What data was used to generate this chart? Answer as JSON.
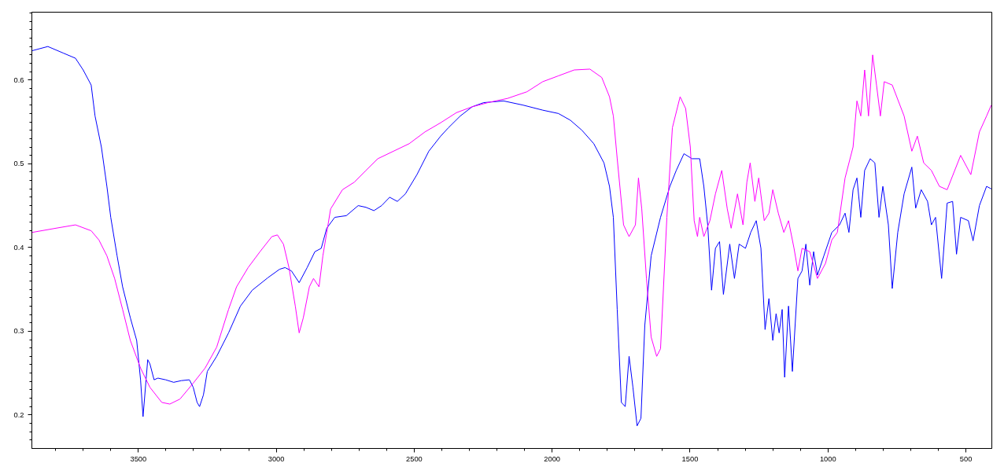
{
  "chart_data": {
    "type": "line",
    "line_style": "solid",
    "marker": "none",
    "grid": false,
    "xlim": [
      3886,
      406
    ],
    "ylim": [
      0.16,
      0.681
    ],
    "xticks": [
      {
        "value": 3800,
        "label": null
      },
      {
        "value": 3700,
        "label": null
      },
      {
        "value": 3600,
        "label": null
      },
      3500,
      {
        "value": 3400,
        "label": null
      },
      {
        "value": 3300,
        "label": null
      },
      {
        "value": 3200,
        "label": null
      },
      {
        "value": 3100,
        "label": null
      },
      3000,
      {
        "value": 2900,
        "label": null
      },
      {
        "value": 2800,
        "label": null
      },
      {
        "value": 2700,
        "label": null
      },
      {
        "value": 2600,
        "label": null
      },
      2500,
      {
        "value": 2400,
        "label": null
      },
      {
        "value": 2300,
        "label": null
      },
      {
        "value": 2200,
        "label": null
      },
      {
        "value": 2100,
        "label": null
      },
      2000,
      {
        "value": 1900,
        "label": null
      },
      {
        "value": 1800,
        "label": null
      },
      {
        "value": 1700,
        "label": null
      },
      {
        "value": 1600,
        "label": null
      },
      1500,
      {
        "value": 1400,
        "label": null
      },
      {
        "value": 1300,
        "label": null
      },
      {
        "value": 1200,
        "label": null
      },
      {
        "value": 1100,
        "label": null
      },
      1000,
      {
        "value": 900,
        "label": null
      },
      {
        "value": 800,
        "label": null
      },
      {
        "value": 700,
        "label": null
      },
      {
        "value": 600,
        "label": null
      },
      500
    ],
    "yticks": [
      {
        "value": 0.17,
        "label": null
      },
      {
        "value": 0.18,
        "label": null
      },
      {
        "value": 0.19,
        "label": null
      },
      0.2,
      {
        "value": 0.21,
        "label": null
      },
      {
        "value": 0.22,
        "label": null
      },
      {
        "value": 0.23,
        "label": null
      },
      {
        "value": 0.24,
        "label": null
      },
      {
        "value": 0.25,
        "label": null
      },
      {
        "value": 0.26,
        "label": null
      },
      {
        "value": 0.27,
        "label": null
      },
      {
        "value": 0.28,
        "label": null
      },
      {
        "value": 0.29,
        "label": null
      },
      0.3,
      {
        "value": 0.31,
        "label": null
      },
      {
        "value": 0.32,
        "label": null
      },
      {
        "value": 0.33,
        "label": null
      },
      {
        "value": 0.34,
        "label": null
      },
      {
        "value": 0.35,
        "label": null
      },
      {
        "value": 0.36,
        "label": null
      },
      {
        "value": 0.37,
        "label": null
      },
      {
        "value": 0.38,
        "label": null
      },
      {
        "value": 0.39,
        "label": null
      },
      0.4,
      {
        "value": 0.41,
        "label": null
      },
      {
        "value": 0.42,
        "label": null
      },
      {
        "value": 0.43,
        "label": null
      },
      {
        "value": 0.44,
        "label": null
      },
      {
        "value": 0.45,
        "label": null
      },
      {
        "value": 0.46,
        "label": null
      },
      {
        "value": 0.47,
        "label": null
      },
      {
        "value": 0.48,
        "label": null
      },
      {
        "value": 0.49,
        "label": null
      },
      0.5,
      {
        "value": 0.51,
        "label": null
      },
      {
        "value": 0.52,
        "label": null
      },
      {
        "value": 0.53,
        "label": null
      },
      {
        "value": 0.54,
        "label": null
      },
      {
        "value": 0.55,
        "label": null
      },
      {
        "value": 0.56,
        "label": null
      },
      {
        "value": 0.57,
        "label": null
      },
      {
        "value": 0.58,
        "label": null
      },
      {
        "value": 0.59,
        "label": null
      },
      0.6,
      {
        "value": 0.61,
        "label": null
      },
      {
        "value": 0.62,
        "label": null
      },
      {
        "value": 0.63,
        "label": null
      },
      {
        "value": 0.64,
        "label": null
      },
      {
        "value": 0.65,
        "label": null
      },
      {
        "value": 0.66,
        "label": null
      },
      {
        "value": 0.67,
        "label": null
      },
      {
        "value": 0.68,
        "label": null
      }
    ],
    "series": [
      {
        "color": "#0000ff",
        "x": [
          3885,
          3828,
          3771,
          3728,
          3700,
          3671,
          3657,
          3634,
          3614,
          3600,
          3577,
          3557,
          3529,
          3506,
          3492,
          3483,
          3466,
          3458,
          3443,
          3429,
          3401,
          3372,
          3344,
          3315,
          3301,
          3287,
          3278,
          3264,
          3250,
          3216,
          3173,
          3130,
          3087,
          3030,
          2988,
          2968,
          2945,
          2917,
          2888,
          2860,
          2837,
          2817,
          2788,
          2746,
          2703,
          2675,
          2646,
          2618,
          2589,
          2561,
          2532,
          2490,
          2447,
          2404,
          2376,
          2333,
          2290,
          2248,
          2176,
          2105,
          2034,
          1977,
          1934,
          1892,
          1849,
          1812,
          1792,
          1778,
          1764,
          1749,
          1735,
          1721,
          1707,
          1692,
          1678,
          1664,
          1641,
          1607,
          1573,
          1550,
          1522,
          1493,
          1465,
          1450,
          1436,
          1422,
          1408,
          1393,
          1379,
          1356,
          1339,
          1322,
          1299,
          1280,
          1260,
          1243,
          1228,
          1214,
          1200,
          1188,
          1177,
          1166,
          1157,
          1143,
          1129,
          1109,
          1094,
          1080,
          1066,
          1052,
          1038,
          1015,
          986,
          958,
          938,
          924,
          909,
          895,
          881,
          867,
          847,
          830,
          815,
          801,
          781,
          767,
          747,
          724,
          696,
          682,
          662,
          639,
          625,
          610,
          588,
          568,
          548,
          534,
          519,
          491,
          474,
          451,
          425,
          408
        ],
        "values": [
          0.635,
          0.64,
          0.632,
          0.626,
          0.612,
          0.594,
          0.557,
          0.52,
          0.473,
          0.436,
          0.39,
          0.353,
          0.316,
          0.289,
          0.242,
          0.198,
          0.266,
          0.261,
          0.242,
          0.244,
          0.242,
          0.239,
          0.241,
          0.242,
          0.233,
          0.215,
          0.21,
          0.224,
          0.252,
          0.27,
          0.298,
          0.33,
          0.349,
          0.364,
          0.374,
          0.376,
          0.372,
          0.358,
          0.376,
          0.395,
          0.399,
          0.423,
          0.436,
          0.438,
          0.45,
          0.448,
          0.444,
          0.45,
          0.46,
          0.455,
          0.464,
          0.487,
          0.515,
          0.533,
          0.543,
          0.557,
          0.568,
          0.573,
          0.575,
          0.57,
          0.564,
          0.56,
          0.552,
          0.54,
          0.524,
          0.501,
          0.473,
          0.436,
          0.326,
          0.215,
          0.21,
          0.27,
          0.233,
          0.187,
          0.196,
          0.307,
          0.39,
          0.436,
          0.473,
          0.492,
          0.512,
          0.506,
          0.506,
          0.473,
          0.427,
          0.349,
          0.399,
          0.407,
          0.344,
          0.404,
          0.363,
          0.404,
          0.399,
          0.418,
          0.432,
          0.399,
          0.302,
          0.339,
          0.289,
          0.321,
          0.298,
          0.326,
          0.245,
          0.33,
          0.252,
          0.363,
          0.372,
          0.404,
          0.355,
          0.395,
          0.367,
          0.39,
          0.418,
          0.427,
          0.441,
          0.418,
          0.469,
          0.483,
          0.436,
          0.492,
          0.506,
          0.501,
          0.436,
          0.473,
          0.427,
          0.351,
          0.418,
          0.464,
          0.496,
          0.447,
          0.469,
          0.455,
          0.427,
          0.436,
          0.363,
          0.453,
          0.455,
          0.392,
          0.436,
          0.432,
          0.408,
          0.45,
          0.473,
          0.47
        ]
      },
      {
        "color": "#ff00ff",
        "x": [
          3885,
          3799,
          3728,
          3671,
          3643,
          3614,
          3586,
          3557,
          3529,
          3492,
          3458,
          3415,
          3386,
          3349,
          3301,
          3258,
          3216,
          3173,
          3144,
          3102,
          3059,
          3016,
          2996,
          2974,
          2954,
          2931,
          2917,
          2902,
          2880,
          2865,
          2845,
          2831,
          2803,
          2760,
          2717,
          2675,
          2632,
          2575,
          2518,
          2461,
          2404,
          2347,
          2290,
          2233,
          2162,
          2091,
          2034,
          1977,
          1920,
          1863,
          1820,
          1792,
          1778,
          1764,
          1741,
          1721,
          1698,
          1687,
          1675,
          1658,
          1641,
          1621,
          1607,
          1584,
          1564,
          1536,
          1516,
          1499,
          1485,
          1473,
          1465,
          1450,
          1428,
          1408,
          1385,
          1365,
          1351,
          1328,
          1308,
          1294,
          1282,
          1265,
          1251,
          1231,
          1214,
          1200,
          1180,
          1160,
          1143,
          1123,
          1109,
          1094,
          1066,
          1038,
          1009,
          986,
          966,
          938,
          909,
          895,
          881,
          867,
          853,
          838,
          824,
          810,
          796,
          767,
          724,
          696,
          676,
          653,
          625,
          596,
          568,
          519,
          482,
          451,
          425,
          408
        ],
        "values": [
          0.418,
          0.423,
          0.427,
          0.42,
          0.409,
          0.39,
          0.363,
          0.326,
          0.289,
          0.256,
          0.233,
          0.215,
          0.213,
          0.219,
          0.238,
          0.256,
          0.281,
          0.326,
          0.353,
          0.376,
          0.395,
          0.413,
          0.415,
          0.404,
          0.376,
          0.33,
          0.298,
          0.316,
          0.353,
          0.363,
          0.353,
          0.39,
          0.446,
          0.469,
          0.478,
          0.492,
          0.506,
          0.515,
          0.524,
          0.538,
          0.549,
          0.561,
          0.568,
          0.573,
          0.578,
          0.586,
          0.598,
          0.605,
          0.612,
          0.613,
          0.603,
          0.58,
          0.557,
          0.506,
          0.427,
          0.413,
          0.427,
          0.483,
          0.446,
          0.363,
          0.293,
          0.27,
          0.279,
          0.436,
          0.543,
          0.58,
          0.566,
          0.52,
          0.432,
          0.413,
          0.436,
          0.413,
          0.432,
          0.464,
          0.492,
          0.446,
          0.423,
          0.464,
          0.427,
          0.478,
          0.501,
          0.455,
          0.483,
          0.432,
          0.441,
          0.469,
          0.441,
          0.418,
          0.432,
          0.399,
          0.372,
          0.399,
          0.395,
          0.363,
          0.381,
          0.409,
          0.418,
          0.483,
          0.52,
          0.575,
          0.557,
          0.612,
          0.557,
          0.63,
          0.594,
          0.557,
          0.598,
          0.594,
          0.557,
          0.515,
          0.533,
          0.501,
          0.492,
          0.473,
          0.469,
          0.51,
          0.487,
          0.538,
          0.557,
          0.57
        ]
      }
    ]
  }
}
